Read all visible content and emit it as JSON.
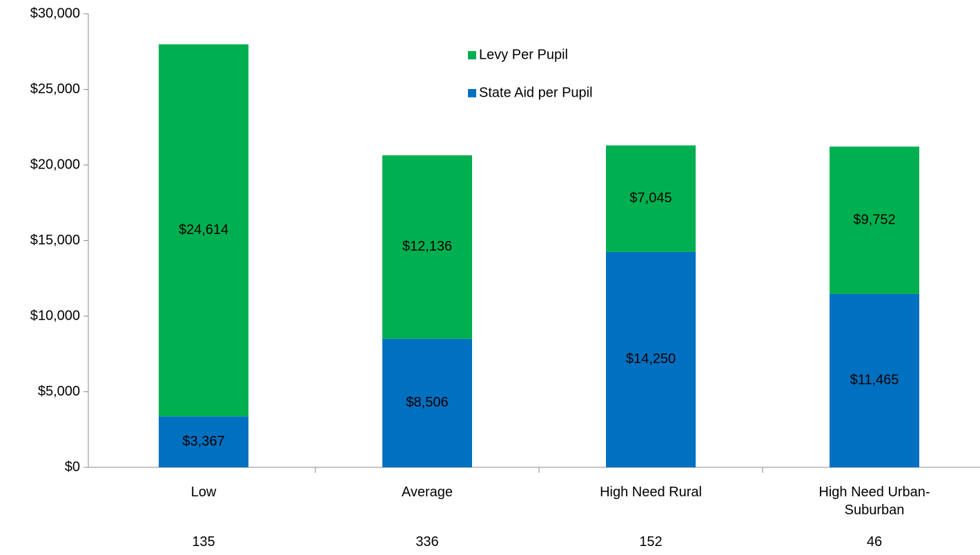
{
  "chart_data": {
    "type": "stacked_bar",
    "categories": [
      "Low",
      "Average",
      "High Need Rural",
      "High Need Urban-Suburban"
    ],
    "category_counts": [
      135,
      336,
      152,
      46
    ],
    "series": [
      {
        "name": "State Aid per Pupil",
        "color": "#0070c0",
        "values": [
          3367,
          8506,
          14250,
          11465
        ],
        "value_labels": [
          "$3,367",
          "$8,506",
          "$14,250",
          "$11,465"
        ]
      },
      {
        "name": "Levy Per Pupil",
        "color": "#00b050",
        "values": [
          24614,
          12136,
          7045,
          9752
        ],
        "value_labels": [
          "$24,614",
          "$12,136",
          "$7,045",
          "$9,752"
        ]
      }
    ],
    "ylim": [
      0,
      30000
    ],
    "yticks": [
      {
        "value": 0,
        "label": "$0"
      },
      {
        "value": 5000,
        "label": "$5,000"
      },
      {
        "value": 10000,
        "label": "$10,000"
      },
      {
        "value": 15000,
        "label": "$15,000"
      },
      {
        "value": 20000,
        "label": "$20,000"
      },
      {
        "value": 25000,
        "label": "$25,000"
      },
      {
        "value": 30000,
        "label": "$30,000"
      }
    ],
    "legend": "top-center"
  }
}
